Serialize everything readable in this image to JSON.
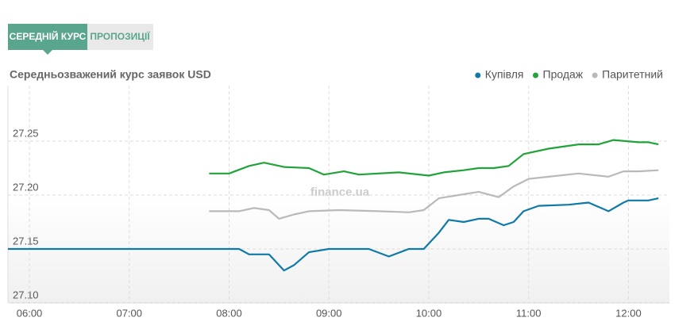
{
  "tabs": [
    "СЕРЕДНІЙ КУРС",
    "ПРОПОЗИЦІЇ"
  ],
  "watermark": "finance.ua",
  "chart_data": {
    "type": "line",
    "title": "Середньозважений курс заявок USD",
    "xlim": [
      5.785,
      12.41
    ],
    "xticks": [
      {
        "value": 6,
        "label": "06:00"
      },
      {
        "value": 7,
        "label": "07:00"
      },
      {
        "value": 8,
        "label": "08:00"
      },
      {
        "value": 9,
        "label": "09:00"
      },
      {
        "value": 10,
        "label": "10:00"
      },
      {
        "value": 11,
        "label": "11:00"
      },
      {
        "value": 12,
        "label": "12:00"
      }
    ],
    "ylim": [
      27.1,
      27.3
    ],
    "yticks": [
      {
        "value": 27.1,
        "label": "27.10"
      },
      {
        "value": 27.15,
        "label": "27.15"
      },
      {
        "value": 27.2,
        "label": "27.20"
      },
      {
        "value": 27.25,
        "label": "27.25"
      }
    ],
    "grid": true,
    "legend": "top-right",
    "series": [
      {
        "name": "Купівля",
        "color": "#0f79a8",
        "x": [
          5.785,
          8.1,
          8.2,
          8.4,
          8.55,
          8.65,
          8.8,
          9.0,
          9.4,
          9.6,
          9.8,
          9.95,
          10.1,
          10.2,
          10.35,
          10.5,
          10.6,
          10.75,
          10.85,
          10.95,
          11.1,
          11.4,
          11.6,
          11.8,
          11.95,
          12.0,
          12.2,
          12.3
        ],
        "values": [
          27.15,
          27.15,
          27.145,
          27.145,
          27.13,
          27.135,
          27.147,
          27.15,
          27.15,
          27.143,
          27.15,
          27.15,
          27.165,
          27.177,
          27.175,
          27.178,
          27.178,
          27.172,
          27.175,
          27.185,
          27.19,
          27.191,
          27.193,
          27.185,
          27.193,
          27.195,
          27.195,
          27.197
        ]
      },
      {
        "name": "Продаж",
        "color": "#21a33a",
        "x": [
          7.8,
          8.0,
          8.2,
          8.35,
          8.55,
          8.8,
          8.95,
          9.15,
          9.3,
          9.7,
          10.0,
          10.15,
          10.35,
          10.5,
          10.65,
          10.8,
          10.95,
          11.2,
          11.5,
          11.7,
          11.85,
          12.1,
          12.2,
          12.3
        ],
        "values": [
          27.22,
          27.22,
          27.227,
          27.23,
          27.226,
          27.225,
          27.219,
          27.222,
          27.219,
          27.221,
          27.218,
          27.221,
          27.223,
          27.225,
          27.225,
          27.227,
          27.238,
          27.243,
          27.247,
          27.247,
          27.251,
          27.249,
          27.249,
          27.247
        ]
      },
      {
        "name": "Паритетний",
        "color": "#b9b9b9",
        "x": [
          7.8,
          8.1,
          8.25,
          8.4,
          8.5,
          8.65,
          8.8,
          9.1,
          9.5,
          9.8,
          9.95,
          10.1,
          10.3,
          10.5,
          10.7,
          10.85,
          11.0,
          11.2,
          11.5,
          11.8,
          11.95,
          12.1,
          12.3
        ],
        "values": [
          27.185,
          27.185,
          27.188,
          27.186,
          27.178,
          27.182,
          27.185,
          27.186,
          27.185,
          27.184,
          27.186,
          27.197,
          27.2,
          27.203,
          27.198,
          27.208,
          27.215,
          27.217,
          27.22,
          27.217,
          27.222,
          27.222,
          27.223
        ]
      }
    ]
  }
}
